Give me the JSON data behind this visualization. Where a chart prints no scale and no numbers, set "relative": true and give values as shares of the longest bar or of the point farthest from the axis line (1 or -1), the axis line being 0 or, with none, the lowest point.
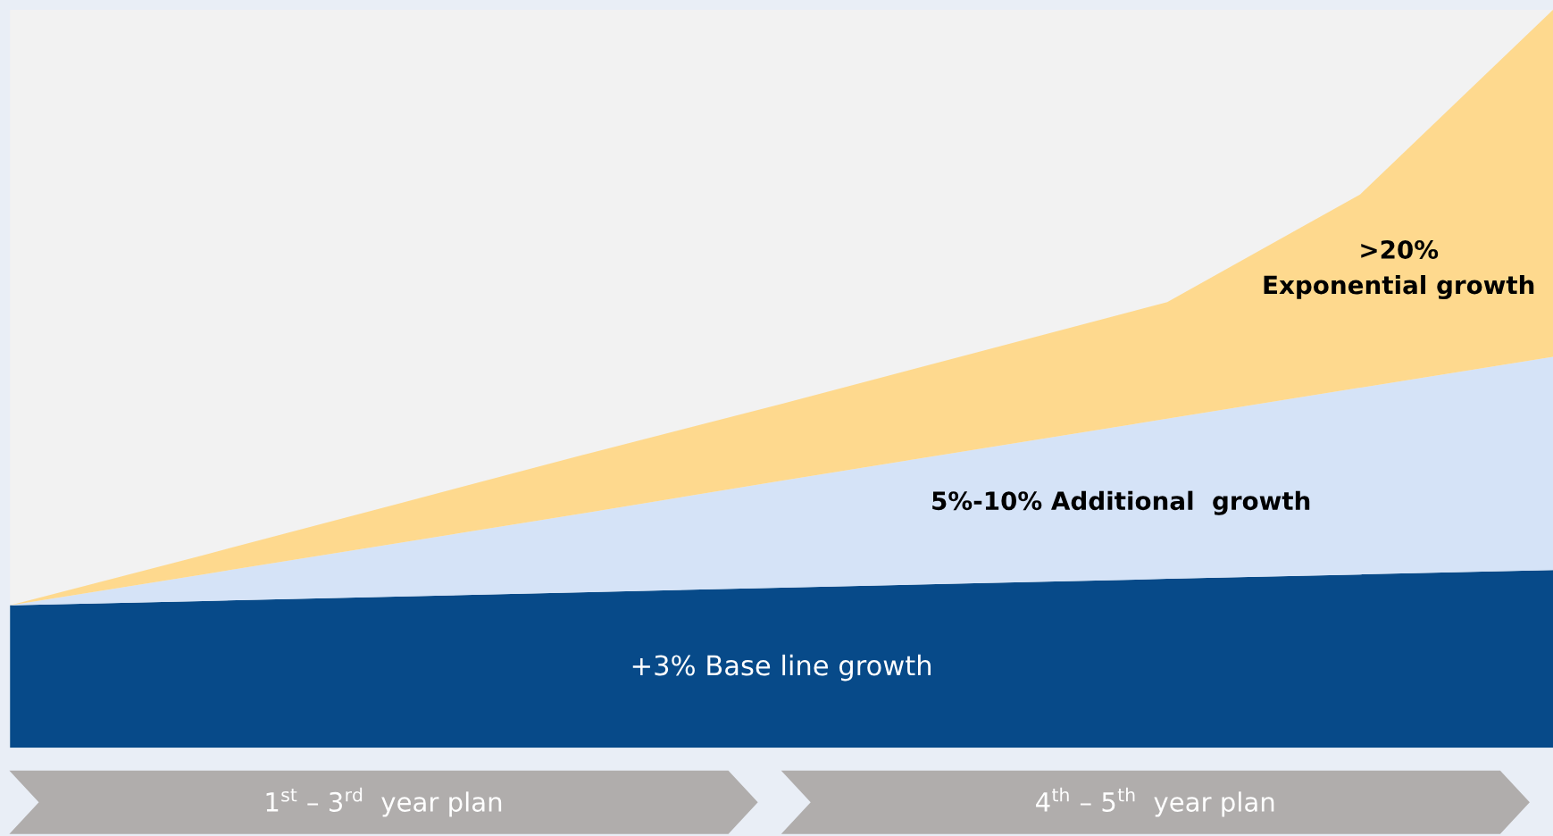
{
  "chart_data": {
    "type": "area",
    "stacked": true,
    "relative": true,
    "categories": [
      null,
      null,
      null,
      null,
      null,
      null,
      null,
      null,
      null
    ],
    "series": [
      {
        "name": "+3% Base line growth",
        "color": "#074a89",
        "values": [
          0.193,
          0.199,
          0.205,
          0.211,
          0.217,
          0.223,
          0.229,
          0.235,
          0.241
        ]
      },
      {
        "name": "5%-10% Additional  growth",
        "color": "#d5e3f7",
        "values": [
          0,
          0.036,
          0.072,
          0.108,
          0.145,
          0.181,
          0.217,
          0.253,
          0.289
        ]
      },
      {
        "name": ">20%\nExponential growth",
        "color": "#fed98e",
        "values": [
          0,
          0.026,
          0.053,
          0.08,
          0.104,
          0.131,
          0.158,
          0.262,
          0.47
        ]
      }
    ],
    "annotations": [
      "1$^{st}$ – 3$^{rd}$  year plan",
      "4$^{th}$ – 5$^{th}$  year plan"
    ]
  }
}
